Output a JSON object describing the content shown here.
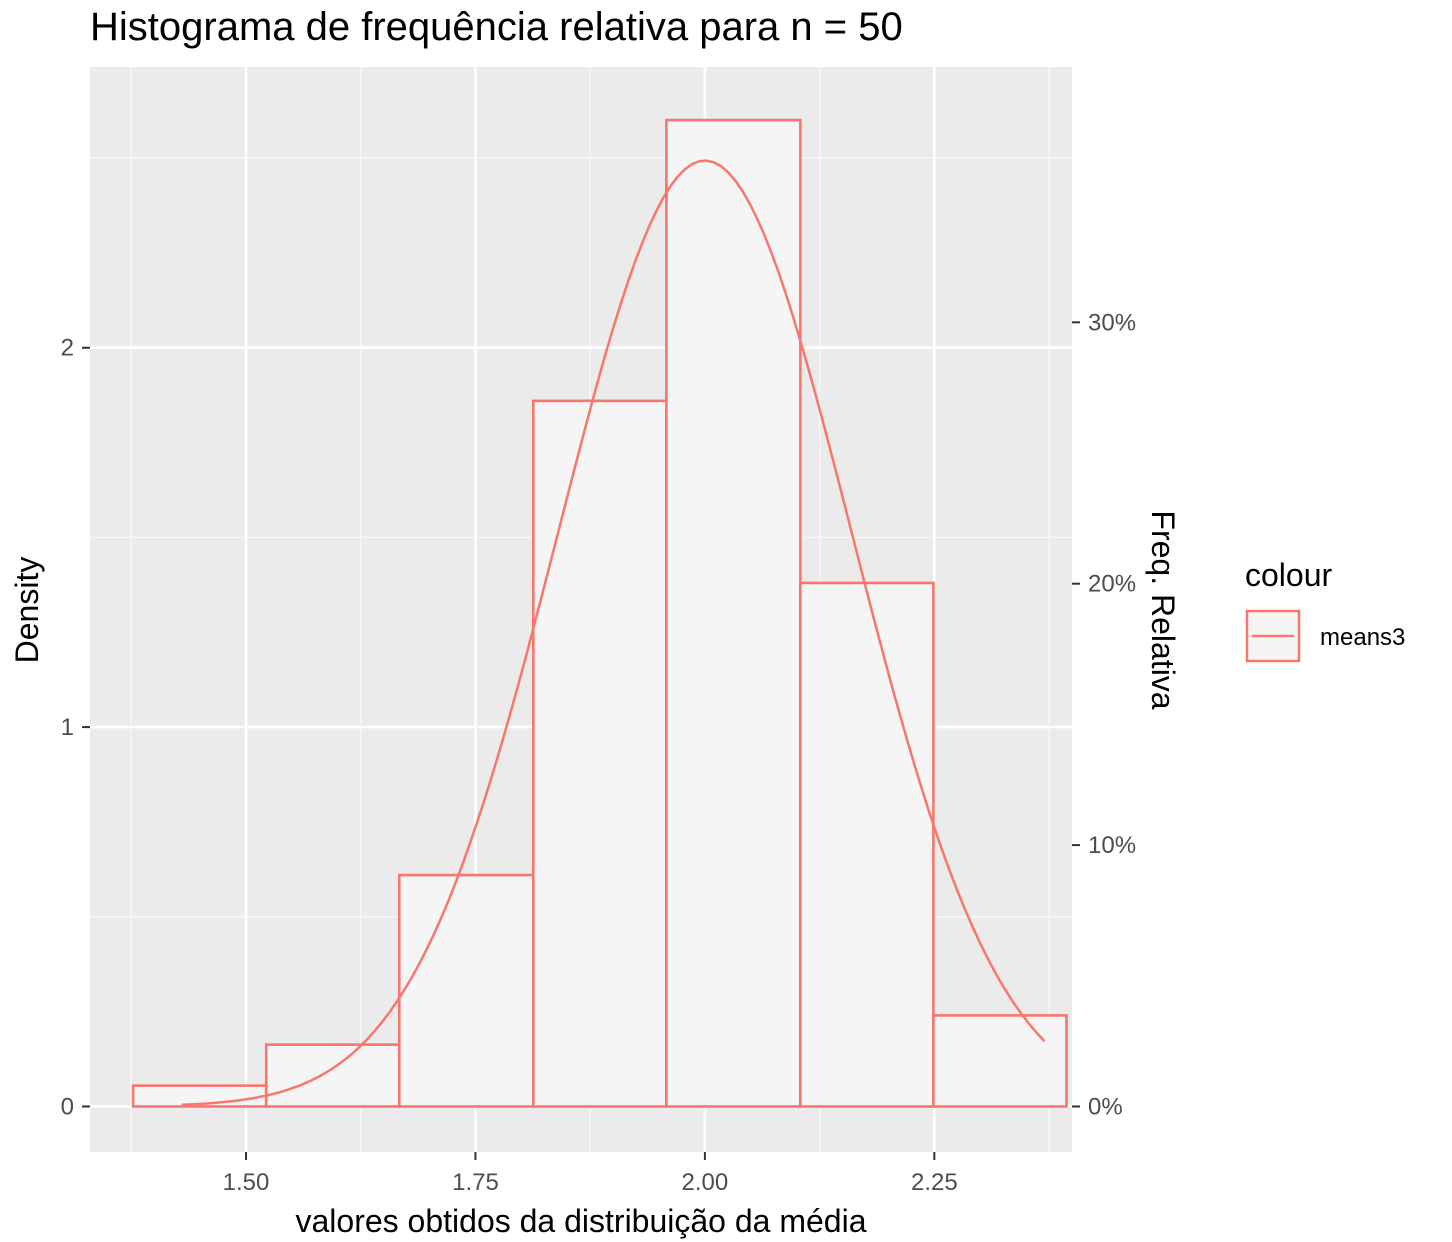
{
  "chart_data": {
    "type": "bar",
    "title": "Histograma de frequência relativa para n = 50",
    "xlabel": "valores obtidos da distribuição da média",
    "ylabel": "Density",
    "y2label": "Freq. Relativa",
    "xlim": [
      1.33,
      2.4
    ],
    "ylim": [
      -0.12,
      2.74
    ],
    "x_ticks": [
      1.5,
      1.75,
      2.0,
      2.25
    ],
    "x_tick_labels": [
      "1.50",
      "1.75",
      "2.00",
      "2.25"
    ],
    "y_ticks": [
      0,
      1,
      2
    ],
    "y_tick_labels": [
      "0",
      "1",
      "2"
    ],
    "y2_ticks": [
      0,
      0.689,
      1.378,
      2.067
    ],
    "y2_tick_labels": [
      "0%",
      "10%",
      "20%",
      "30%"
    ],
    "bins": [
      {
        "xmin": 1.377,
        "xmax": 1.522,
        "density": 0.055
      },
      {
        "xmin": 1.522,
        "xmax": 1.667,
        "density": 0.163
      },
      {
        "xmin": 1.667,
        "xmax": 1.813,
        "density": 0.61
      },
      {
        "xmin": 1.813,
        "xmax": 1.958,
        "density": 1.86
      },
      {
        "xmin": 1.958,
        "xmax": 2.104,
        "density": 2.6
      },
      {
        "xmin": 2.104,
        "xmax": 2.249,
        "density": 1.38
      },
      {
        "xmin": 2.249,
        "xmax": 2.394,
        "density": 0.24
      }
    ],
    "density_curve": {
      "x_range": [
        1.43,
        2.37
      ],
      "mean": 2.0,
      "sd": 0.16
    },
    "legend": {
      "title": "colour",
      "items": [
        {
          "label": "means3",
          "color": "#F8766D"
        }
      ],
      "position": "right"
    },
    "grid": true,
    "colors": {
      "panel": "#EBEBEB",
      "grid_major": "#FFFFFF",
      "bar_fill": "#F5F5F5",
      "series": "#F8766D",
      "tick": "#333333"
    }
  }
}
